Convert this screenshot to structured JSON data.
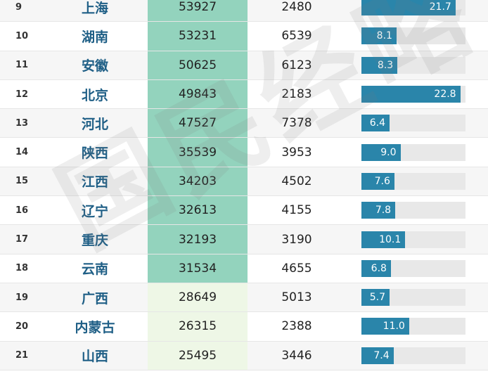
{
  "rows": [
    {
      "rank": "9",
      "province": "上海",
      "gdp": "53927",
      "pop": "2480",
      "rate": "21.7",
      "rate_value": 21.7,
      "tier": "high"
    },
    {
      "rank": "10",
      "province": "湖南",
      "gdp": "53231",
      "pop": "6539",
      "rate": "8.1",
      "rate_value": 8.1,
      "tier": "high"
    },
    {
      "rank": "11",
      "province": "安徽",
      "gdp": "50625",
      "pop": "6123",
      "rate": "8.3",
      "rate_value": 8.3,
      "tier": "high"
    },
    {
      "rank": "12",
      "province": "北京",
      "gdp": "49843",
      "pop": "2183",
      "rate": "22.8",
      "rate_value": 22.8,
      "tier": "high"
    },
    {
      "rank": "13",
      "province": "河北",
      "gdp": "47527",
      "pop": "7378",
      "rate": "6.4",
      "rate_value": 6.4,
      "tier": "high"
    },
    {
      "rank": "14",
      "province": "陕西",
      "gdp": "35539",
      "pop": "3953",
      "rate": "9.0",
      "rate_value": 9.0,
      "tier": "high"
    },
    {
      "rank": "15",
      "province": "江西",
      "gdp": "34203",
      "pop": "4502",
      "rate": "7.6",
      "rate_value": 7.6,
      "tier": "high"
    },
    {
      "rank": "16",
      "province": "辽宁",
      "gdp": "32613",
      "pop": "4155",
      "rate": "7.8",
      "rate_value": 7.8,
      "tier": "high"
    },
    {
      "rank": "17",
      "province": "重庆",
      "gdp": "32193",
      "pop": "3190",
      "rate": "10.1",
      "rate_value": 10.1,
      "tier": "high"
    },
    {
      "rank": "18",
      "province": "云南",
      "gdp": "31534",
      "pop": "4655",
      "rate": "6.8",
      "rate_value": 6.8,
      "tier": "high"
    },
    {
      "rank": "19",
      "province": "广西",
      "gdp": "28649",
      "pop": "5013",
      "rate": "5.7",
      "rate_value": 5.7,
      "tier": "low"
    },
    {
      "rank": "20",
      "province": "内蒙古",
      "gdp": "26315",
      "pop": "2388",
      "rate": "11.0",
      "rate_value": 11.0,
      "tier": "low"
    },
    {
      "rank": "21",
      "province": "山西",
      "gdp": "25495",
      "pop": "3446",
      "rate": "7.4",
      "rate_value": 7.4,
      "tier": "low"
    }
  ],
  "bar_scale_max": 24,
  "colors": {
    "bar": "#2a85aa",
    "gdp_high": "#93d3bd",
    "gdp_low": "#eef7e6",
    "province": "#1f5f86"
  },
  "watermark": "国民经略"
}
